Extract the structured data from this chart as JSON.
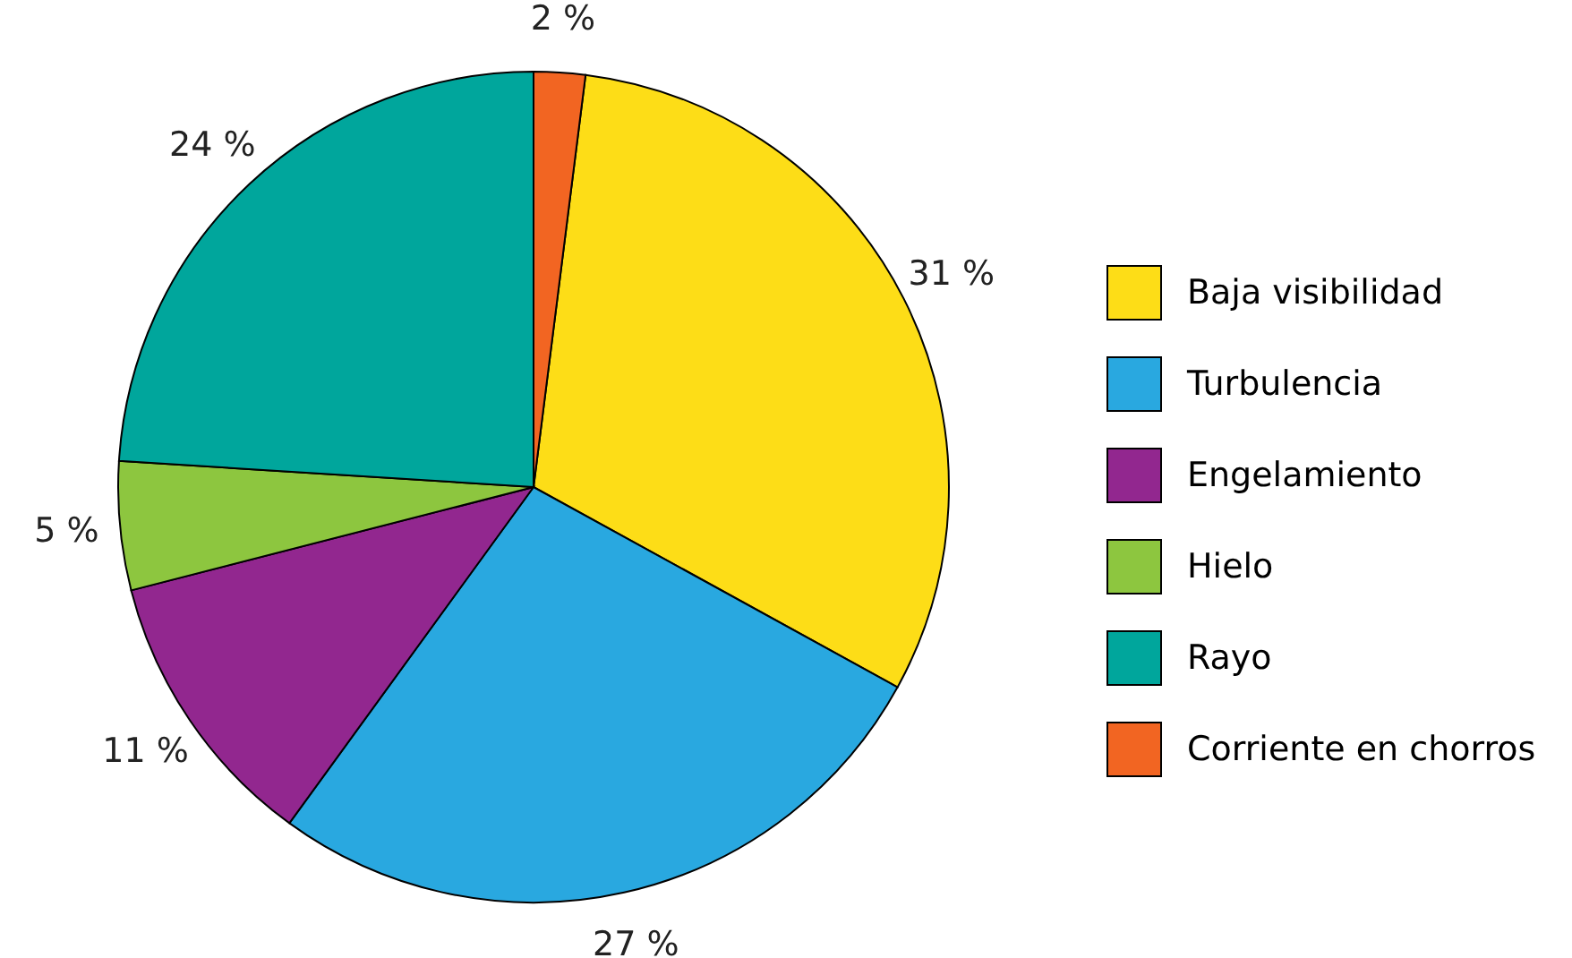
{
  "chart_data": {
    "type": "pie",
    "categories": [
      "Baja visibilidad",
      "Turbulencia",
      "Engelamiento",
      "Hielo",
      "Rayo",
      "Corriente en chorros"
    ],
    "values": [
      31,
      27,
      11,
      5,
      24,
      2
    ],
    "colors": [
      "#fddd17",
      "#29a8e0",
      "#92278f",
      "#8dc63f",
      "#00a69c",
      "#f26522"
    ],
    "value_labels": [
      "31 %",
      "27 %",
      "11 %",
      "5 %",
      "24 %",
      "2 %"
    ],
    "legend": "right"
  }
}
